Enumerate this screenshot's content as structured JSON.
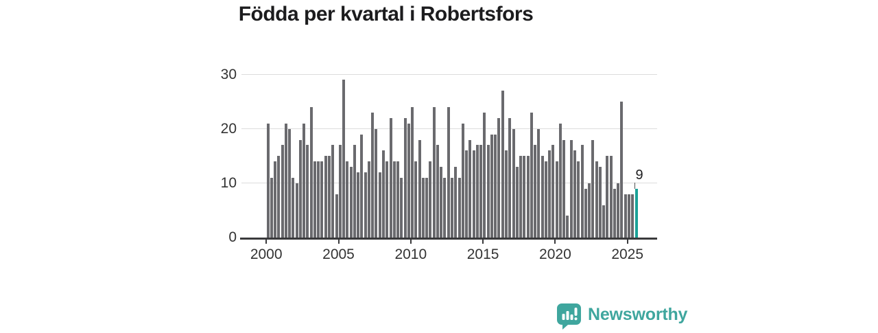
{
  "chart_data": {
    "type": "bar",
    "title": "Födda per kvartal i Robertsfors",
    "period": "quarterly",
    "x_start": "2000-Q1",
    "x_end": "2025-Q3",
    "values": [
      21,
      11,
      14,
      15,
      17,
      21,
      20,
      11,
      10,
      18,
      21,
      17,
      24,
      14,
      14,
      14,
      15,
      15,
      17,
      8,
      17,
      29,
      14,
      13,
      17,
      12,
      19,
      12,
      14,
      23,
      20,
      12,
      16,
      14,
      22,
      14,
      14,
      11,
      22,
      21,
      24,
      14,
      18,
      11,
      11,
      14,
      24,
      17,
      13,
      11,
      24,
      11,
      13,
      11,
      21,
      16,
      18,
      16,
      17,
      17,
      23,
      17,
      19,
      19,
      22,
      27,
      16,
      22,
      20,
      13,
      15,
      15,
      15,
      23,
      17,
      20,
      15,
      14,
      16,
      17,
      14,
      21,
      18,
      4,
      18,
      16,
      14,
      17,
      9,
      10,
      18,
      14,
      13,
      6,
      15,
      15,
      9,
      10,
      25,
      8,
      8,
      8,
      9
    ],
    "highlight": {
      "index": 102,
      "label": "9",
      "period": "2025-Q3"
    },
    "x_tick_labels": [
      "2000",
      "2005",
      "2010",
      "2015",
      "2020",
      "2025"
    ],
    "y_tick_labels": [
      "0",
      "10",
      "20",
      "30"
    ],
    "ylim": [
      0,
      30
    ],
    "grid": "horizontal",
    "legend": "none",
    "bar_color": "#6a6a6e",
    "highlight_color": "#1aa298",
    "axis_color": "#3a3a3c",
    "grid_color": "#dcdcdc",
    "label_color": "#333333"
  },
  "branding": {
    "logo_text": "Newsworthy",
    "logo_color": "#3fa69e"
  }
}
